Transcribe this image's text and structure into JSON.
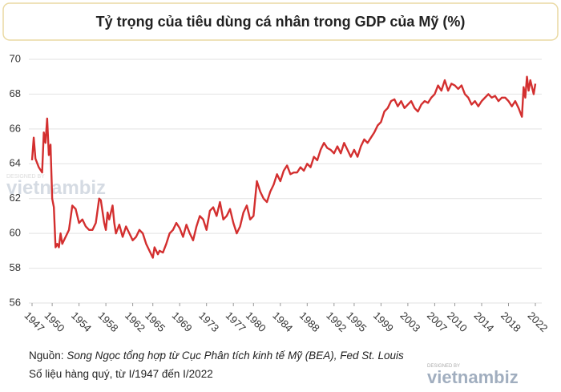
{
  "chart_data": {
    "type": "line",
    "title": "Tỷ trọng của tiêu dùng cá nhân trong GDP của Mỹ (%)",
    "source_label": "Nguồn:",
    "source": "Song Ngọc tổng hợp từ Cục Phân tích kinh tế Mỹ (BEA), Fed St. Louis",
    "note": "Số liệu hàng quý, từ I/1947 đến I/2022",
    "watermark": {
      "designed_by": "DESIGNED BY",
      "brand": "vietnambiz"
    },
    "color": "#d32f2f",
    "grid": true,
    "ylim": [
      56,
      70
    ],
    "yticks": [
      56,
      58,
      60,
      62,
      64,
      66,
      68,
      70
    ],
    "xlim": [
      1947,
      2022
    ],
    "xticks": [
      1947,
      1950,
      1954,
      1958,
      1962,
      1965,
      1969,
      1973,
      1977,
      1980,
      1984,
      1988,
      1992,
      1995,
      1999,
      2003,
      2007,
      2010,
      2014,
      2018,
      2022
    ],
    "x": [
      1947.0,
      1947.25,
      1947.5,
      1948,
      1948.5,
      1948.75,
      1949,
      1949.25,
      1949.5,
      1949.75,
      1950,
      1950.25,
      1950.5,
      1950.75,
      1951,
      1951.25,
      1951.5,
      1951.75,
      1952,
      1952.5,
      1953,
      1953.5,
      1954,
      1954.5,
      1955,
      1955.5,
      1956,
      1956.5,
      1957,
      1957.25,
      1957.75,
      1958,
      1958.25,
      1958.5,
      1959,
      1959.25,
      1959.5,
      1960,
      1960.5,
      1961,
      1961.5,
      1962,
      1962.5,
      1963,
      1963.5,
      1964,
      1964.5,
      1965,
      1965.25,
      1965.75,
      1966,
      1966.5,
      1967,
      1967.5,
      1968,
      1968.5,
      1969,
      1969.5,
      1970,
      1970.5,
      1971,
      1971.5,
      1972,
      1972.5,
      1973,
      1973.5,
      1974,
      1974.5,
      1975,
      1975.5,
      1976,
      1976.5,
      1977,
      1977.5,
      1978,
      1978.5,
      1979,
      1979.5,
      1980,
      1980.5,
      1981,
      1981.5,
      1982,
      1982.5,
      1983,
      1983.5,
      1984,
      1984.5,
      1985,
      1985.5,
      1986,
      1986.5,
      1987,
      1987.5,
      1988,
      1988.5,
      1989,
      1989.5,
      1990,
      1990.5,
      1991,
      1991.5,
      1992,
      1992.5,
      1993,
      1993.5,
      1994,
      1994.5,
      1995,
      1995.5,
      1996,
      1996.5,
      1997,
      1997.5,
      1998,
      1998.5,
      1999,
      1999.5,
      2000,
      2000.5,
      2001,
      2001.5,
      2002,
      2002.5,
      2003,
      2003.5,
      2004,
      2004.5,
      2005,
      2005.5,
      2006,
      2006.5,
      2007,
      2007.5,
      2008,
      2008.5,
      2009,
      2009.5,
      2010,
      2010.5,
      2011,
      2011.5,
      2012,
      2012.5,
      2013,
      2013.5,
      2014,
      2014.5,
      2015,
      2015.5,
      2016,
      2016.5,
      2017,
      2017.5,
      2018,
      2018.5,
      2019,
      2019.5,
      2020,
      2020.25,
      2020.5,
      2020.75,
      2021,
      2021.25,
      2021.75,
      2022
    ],
    "values": [
      64.2,
      65.5,
      64.3,
      63.8,
      63.5,
      65.8,
      65.2,
      66.6,
      64.5,
      65.1,
      62.0,
      61.5,
      59.2,
      59.4,
      59.2,
      60.0,
      59.4,
      59.6,
      59.8,
      60.2,
      61.6,
      61.4,
      60.6,
      60.8,
      60.4,
      60.2,
      60.2,
      60.6,
      62.0,
      61.9,
      60.6,
      60.2,
      61.2,
      60.8,
      61.6,
      60.6,
      60.0,
      60.5,
      59.8,
      60.4,
      60.0,
      59.6,
      59.8,
      60.2,
      60.0,
      59.4,
      59.0,
      58.6,
      59.2,
      58.8,
      59.0,
      58.9,
      59.4,
      60.0,
      60.2,
      60.6,
      60.3,
      59.8,
      60.5,
      60.0,
      59.6,
      60.4,
      61.0,
      60.8,
      60.2,
      61.3,
      61.5,
      61.0,
      61.8,
      60.8,
      61.0,
      61.4,
      60.6,
      60.0,
      60.4,
      61.2,
      61.6,
      60.8,
      61.0,
      63.0,
      62.4,
      62.0,
      61.8,
      62.4,
      62.8,
      63.4,
      63.0,
      63.6,
      63.9,
      63.4,
      63.5,
      63.5,
      63.8,
      63.6,
      64.0,
      63.8,
      64.4,
      64.2,
      64.8,
      65.2,
      64.9,
      64.8,
      64.6,
      65.0,
      64.6,
      65.2,
      64.8,
      64.4,
      64.8,
      64.4,
      65.0,
      65.4,
      65.2,
      65.5,
      65.8,
      66.2,
      66.4,
      67.0,
      67.2,
      67.6,
      67.7,
      67.3,
      67.6,
      67.2,
      67.4,
      67.6,
      67.2,
      67.0,
      67.4,
      67.6,
      67.5,
      67.8,
      68.0,
      68.5,
      68.2,
      68.8,
      68.2,
      68.6,
      68.5,
      68.3,
      68.5,
      68.0,
      67.8,
      67.4,
      67.6,
      67.3,
      67.6,
      67.8,
      68.0,
      67.8,
      67.9,
      67.6,
      67.8,
      67.8,
      67.6,
      67.3,
      67.6,
      67.2,
      66.7,
      68.4,
      67.8,
      69.0,
      68.2,
      68.8,
      68.0,
      68.6
    ]
  }
}
